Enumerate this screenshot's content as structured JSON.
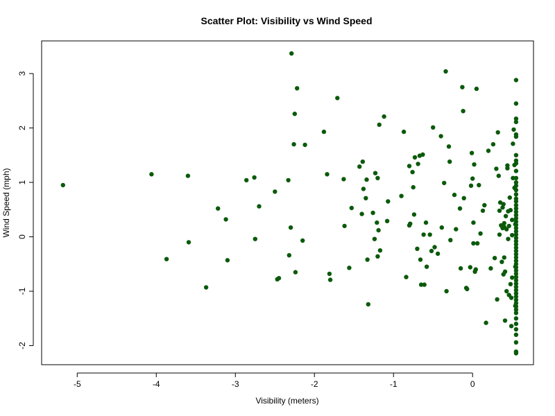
{
  "chart_data": {
    "type": "scatter",
    "title": "Scatter Plot: Visibility vs Wind Speed",
    "xlabel": "Visibility (meters)",
    "ylabel": "Wind Speed (mph)",
    "xlim": [
      -5.45,
      0.77
    ],
    "ylim": [
      -2.35,
      3.6
    ],
    "x_ticks": [
      -5,
      -4,
      -3,
      -2,
      -1,
      0
    ],
    "y_ticks": [
      -2,
      -1,
      0,
      1,
      2,
      3
    ],
    "grid": false,
    "legend": "none",
    "point_color": "#0b5a0b",
    "series": [
      {
        "points": [
          [
            -5.18,
            0.95
          ],
          [
            -4.06,
            1.15
          ],
          [
            -3.87,
            -0.41
          ],
          [
            -3.6,
            1.12
          ],
          [
            -3.59,
            -0.1
          ],
          [
            -3.37,
            -0.93
          ],
          [
            -3.22,
            0.52
          ],
          [
            -3.12,
            0.32
          ],
          [
            -3.1,
            -0.43
          ],
          [
            -2.86,
            1.04
          ],
          [
            -2.76,
            1.09
          ],
          [
            -2.75,
            -0.04
          ],
          [
            -2.7,
            0.56
          ],
          [
            -2.5,
            0.83
          ],
          [
            -2.47,
            -0.78
          ],
          [
            -2.45,
            -0.76
          ],
          [
            -2.33,
            1.04
          ],
          [
            -2.32,
            -0.34
          ],
          [
            -2.3,
            0.17
          ],
          [
            -2.29,
            3.37
          ],
          [
            -2.26,
            1.7
          ],
          [
            -2.25,
            2.26
          ],
          [
            -2.24,
            -0.65
          ],
          [
            -2.22,
            2.73
          ],
          [
            -2.15,
            -0.07
          ],
          [
            -2.12,
            1.69
          ],
          [
            -1.88,
            1.93
          ],
          [
            -1.84,
            1.15
          ],
          [
            -1.81,
            -0.68
          ],
          [
            -1.8,
            -0.79
          ],
          [
            -1.71,
            2.55
          ],
          [
            -1.63,
            1.06
          ],
          [
            -1.62,
            0.2
          ],
          [
            -1.56,
            -0.57
          ],
          [
            -1.53,
            0.53
          ],
          [
            -1.43,
            1.29
          ],
          [
            -1.4,
            0.42
          ],
          [
            -1.39,
            1.38
          ],
          [
            -1.38,
            0.88
          ],
          [
            -1.35,
            0.71
          ],
          [
            -1.34,
            1.05
          ],
          [
            -1.33,
            -0.42
          ],
          [
            -1.32,
            -1.24
          ],
          [
            -1.26,
            0.44
          ],
          [
            -1.24,
            -0.04
          ],
          [
            -1.23,
            1.17
          ],
          [
            -1.21,
            0.26
          ],
          [
            -1.2,
            1.08
          ],
          [
            -1.2,
            -0.36
          ],
          [
            -1.19,
            0.12
          ],
          [
            -1.18,
            2.06
          ],
          [
            -1.17,
            -0.25
          ],
          [
            -1.12,
            2.21
          ],
          [
            -1.08,
            0.29
          ],
          [
            -1.07,
            0.65
          ],
          [
            -0.9,
            0.75
          ],
          [
            -0.87,
            1.93
          ],
          [
            -0.84,
            -0.74
          ],
          [
            -0.8,
            1.3
          ],
          [
            -0.8,
            0.21
          ],
          [
            -0.79,
            0.24
          ],
          [
            -0.76,
            1.19
          ],
          [
            -0.75,
            0.91
          ],
          [
            -0.74,
            0.41
          ],
          [
            -0.73,
            1.46
          ],
          [
            -0.7,
            -0.22
          ],
          [
            -0.69,
            1.34
          ],
          [
            -0.67,
            1.49
          ],
          [
            -0.66,
            -0.42
          ],
          [
            -0.65,
            -0.88
          ],
          [
            -0.63,
            1.51
          ],
          [
            -0.62,
            0.04
          ],
          [
            -0.61,
            -0.88
          ],
          [
            -0.59,
            0.26
          ],
          [
            -0.58,
            -0.55
          ],
          [
            -0.54,
            0.04
          ],
          [
            -0.52,
            -0.26
          ],
          [
            -0.5,
            2.01
          ],
          [
            -0.48,
            -0.19
          ],
          [
            -0.44,
            -0.31
          ],
          [
            -0.4,
            1.85
          ],
          [
            -0.39,
            0.17
          ],
          [
            -0.36,
            0.99
          ],
          [
            -0.34,
            3.04
          ],
          [
            -0.33,
            -1.0
          ],
          [
            -0.3,
            1.66
          ],
          [
            -0.29,
            1.38
          ],
          [
            -0.28,
            -0.06
          ],
          [
            -0.23,
            0.77
          ],
          [
            -0.21,
            0.14
          ],
          [
            -0.16,
            0.52
          ],
          [
            -0.15,
            -0.58
          ],
          [
            -0.13,
            2.75
          ],
          [
            -0.12,
            2.31
          ],
          [
            -0.11,
            0.71
          ],
          [
            -0.08,
            -0.94
          ],
          [
            -0.07,
            -0.96
          ],
          [
            -0.03,
            -0.56
          ],
          [
            -0.02,
            0.94
          ],
          [
            -0.01,
            1.54
          ],
          [
            0.0,
            1.07
          ],
          [
            0.01,
            0.26
          ],
          [
            0.01,
            -0.12
          ],
          [
            0.02,
            1.33
          ],
          [
            0.03,
            -0.64
          ],
          [
            0.04,
            -0.6
          ],
          [
            0.05,
            2.72
          ],
          [
            0.06,
            -0.12
          ],
          [
            0.08,
            0.95
          ],
          [
            0.1,
            0.06
          ],
          [
            0.13,
            0.48
          ],
          [
            0.15,
            0.58
          ],
          [
            0.17,
            -1.58
          ],
          [
            0.2,
            1.58
          ],
          [
            0.23,
            -0.58
          ],
          [
            0.26,
            1.7
          ],
          [
            0.28,
            -0.39
          ],
          [
            0.3,
            1.25
          ],
          [
            0.31,
            -1.15
          ],
          [
            0.32,
            1.92
          ],
          [
            0.33,
            1.12
          ],
          [
            0.34,
            0.04
          ],
          [
            0.34,
            0.48
          ],
          [
            0.35,
            0.63
          ],
          [
            0.36,
            0.21
          ],
          [
            0.37,
            -0.46
          ],
          [
            0.38,
            0.54
          ],
          [
            0.38,
            0.16
          ],
          [
            0.39,
            0.6
          ],
          [
            0.39,
            -0.69
          ],
          [
            0.4,
            0.25
          ],
          [
            0.4,
            0.18
          ],
          [
            0.4,
            -0.38
          ],
          [
            0.41,
            -0.64
          ],
          [
            0.41,
            -1.54
          ],
          [
            0.42,
            0.38
          ],
          [
            0.43,
            0.14
          ],
          [
            0.43,
            -1.0
          ],
          [
            0.44,
            1.31
          ],
          [
            0.44,
            1.26
          ],
          [
            0.45,
            0.47
          ],
          [
            0.45,
            -0.04
          ],
          [
            0.46,
            0.2
          ],
          [
            0.46,
            -1.07
          ],
          [
            0.47,
            0.72
          ],
          [
            0.48,
            0.49
          ],
          [
            0.48,
            -0.87
          ],
          [
            0.49,
            -1.12
          ],
          [
            0.49,
            -1.64
          ],
          [
            0.5,
            0.31
          ],
          [
            0.5,
            0.03
          ],
          [
            0.5,
            -0.75
          ],
          [
            0.51,
            1.71
          ],
          [
            0.51,
            1.08
          ],
          [
            0.52,
            1.97
          ],
          [
            0.53,
            1.32
          ],
          [
            0.53,
            0.9
          ],
          [
            0.54,
            0.23
          ],
          [
            0.54,
            -0.55
          ],
          [
            0.54,
            -1.27
          ],
          [
            0.55,
            2.88
          ],
          [
            0.55,
            2.45
          ],
          [
            0.55,
            2.17
          ],
          [
            0.55,
            2.11
          ],
          [
            0.55,
            1.88
          ],
          [
            0.55,
            1.84
          ],
          [
            0.55,
            1.5
          ],
          [
            0.55,
            1.4
          ],
          [
            0.55,
            1.35
          ],
          [
            0.55,
            1.21
          ],
          [
            0.55,
            1.08
          ],
          [
            0.55,
            1.0
          ],
          [
            0.55,
            0.94
          ],
          [
            0.55,
            0.86
          ],
          [
            0.55,
            0.78
          ],
          [
            0.55,
            0.7
          ],
          [
            0.55,
            0.65
          ],
          [
            0.55,
            0.58
          ],
          [
            0.55,
            0.52
          ],
          [
            0.55,
            0.46
          ],
          [
            0.55,
            0.4
          ],
          [
            0.55,
            0.34
          ],
          [
            0.55,
            0.28
          ],
          [
            0.55,
            0.22
          ],
          [
            0.55,
            0.16
          ],
          [
            0.55,
            0.1
          ],
          [
            0.55,
            0.04
          ],
          [
            0.55,
            -0.02
          ],
          [
            0.55,
            -0.08
          ],
          [
            0.55,
            -0.14
          ],
          [
            0.55,
            -0.2
          ],
          [
            0.55,
            -0.26
          ],
          [
            0.55,
            -0.32
          ],
          [
            0.55,
            -0.38
          ],
          [
            0.55,
            -0.44
          ],
          [
            0.55,
            -0.5
          ],
          [
            0.55,
            -0.56
          ],
          [
            0.55,
            -0.62
          ],
          [
            0.55,
            -0.68
          ],
          [
            0.55,
            -0.74
          ],
          [
            0.55,
            -0.8
          ],
          [
            0.55,
            -0.86
          ],
          [
            0.55,
            -0.92
          ],
          [
            0.55,
            -0.98
          ],
          [
            0.55,
            -1.04
          ],
          [
            0.55,
            -1.1
          ],
          [
            0.55,
            -1.16
          ],
          [
            0.55,
            -1.22
          ],
          [
            0.55,
            -1.28
          ],
          [
            0.55,
            -1.34
          ],
          [
            0.55,
            -1.4
          ],
          [
            0.55,
            -1.5
          ],
          [
            0.55,
            -1.6
          ],
          [
            0.55,
            -1.7
          ],
          [
            0.55,
            -1.8
          ],
          [
            0.55,
            -1.94
          ],
          [
            0.55,
            -2.11
          ],
          [
            0.55,
            -2.14
          ]
        ]
      }
    ]
  }
}
